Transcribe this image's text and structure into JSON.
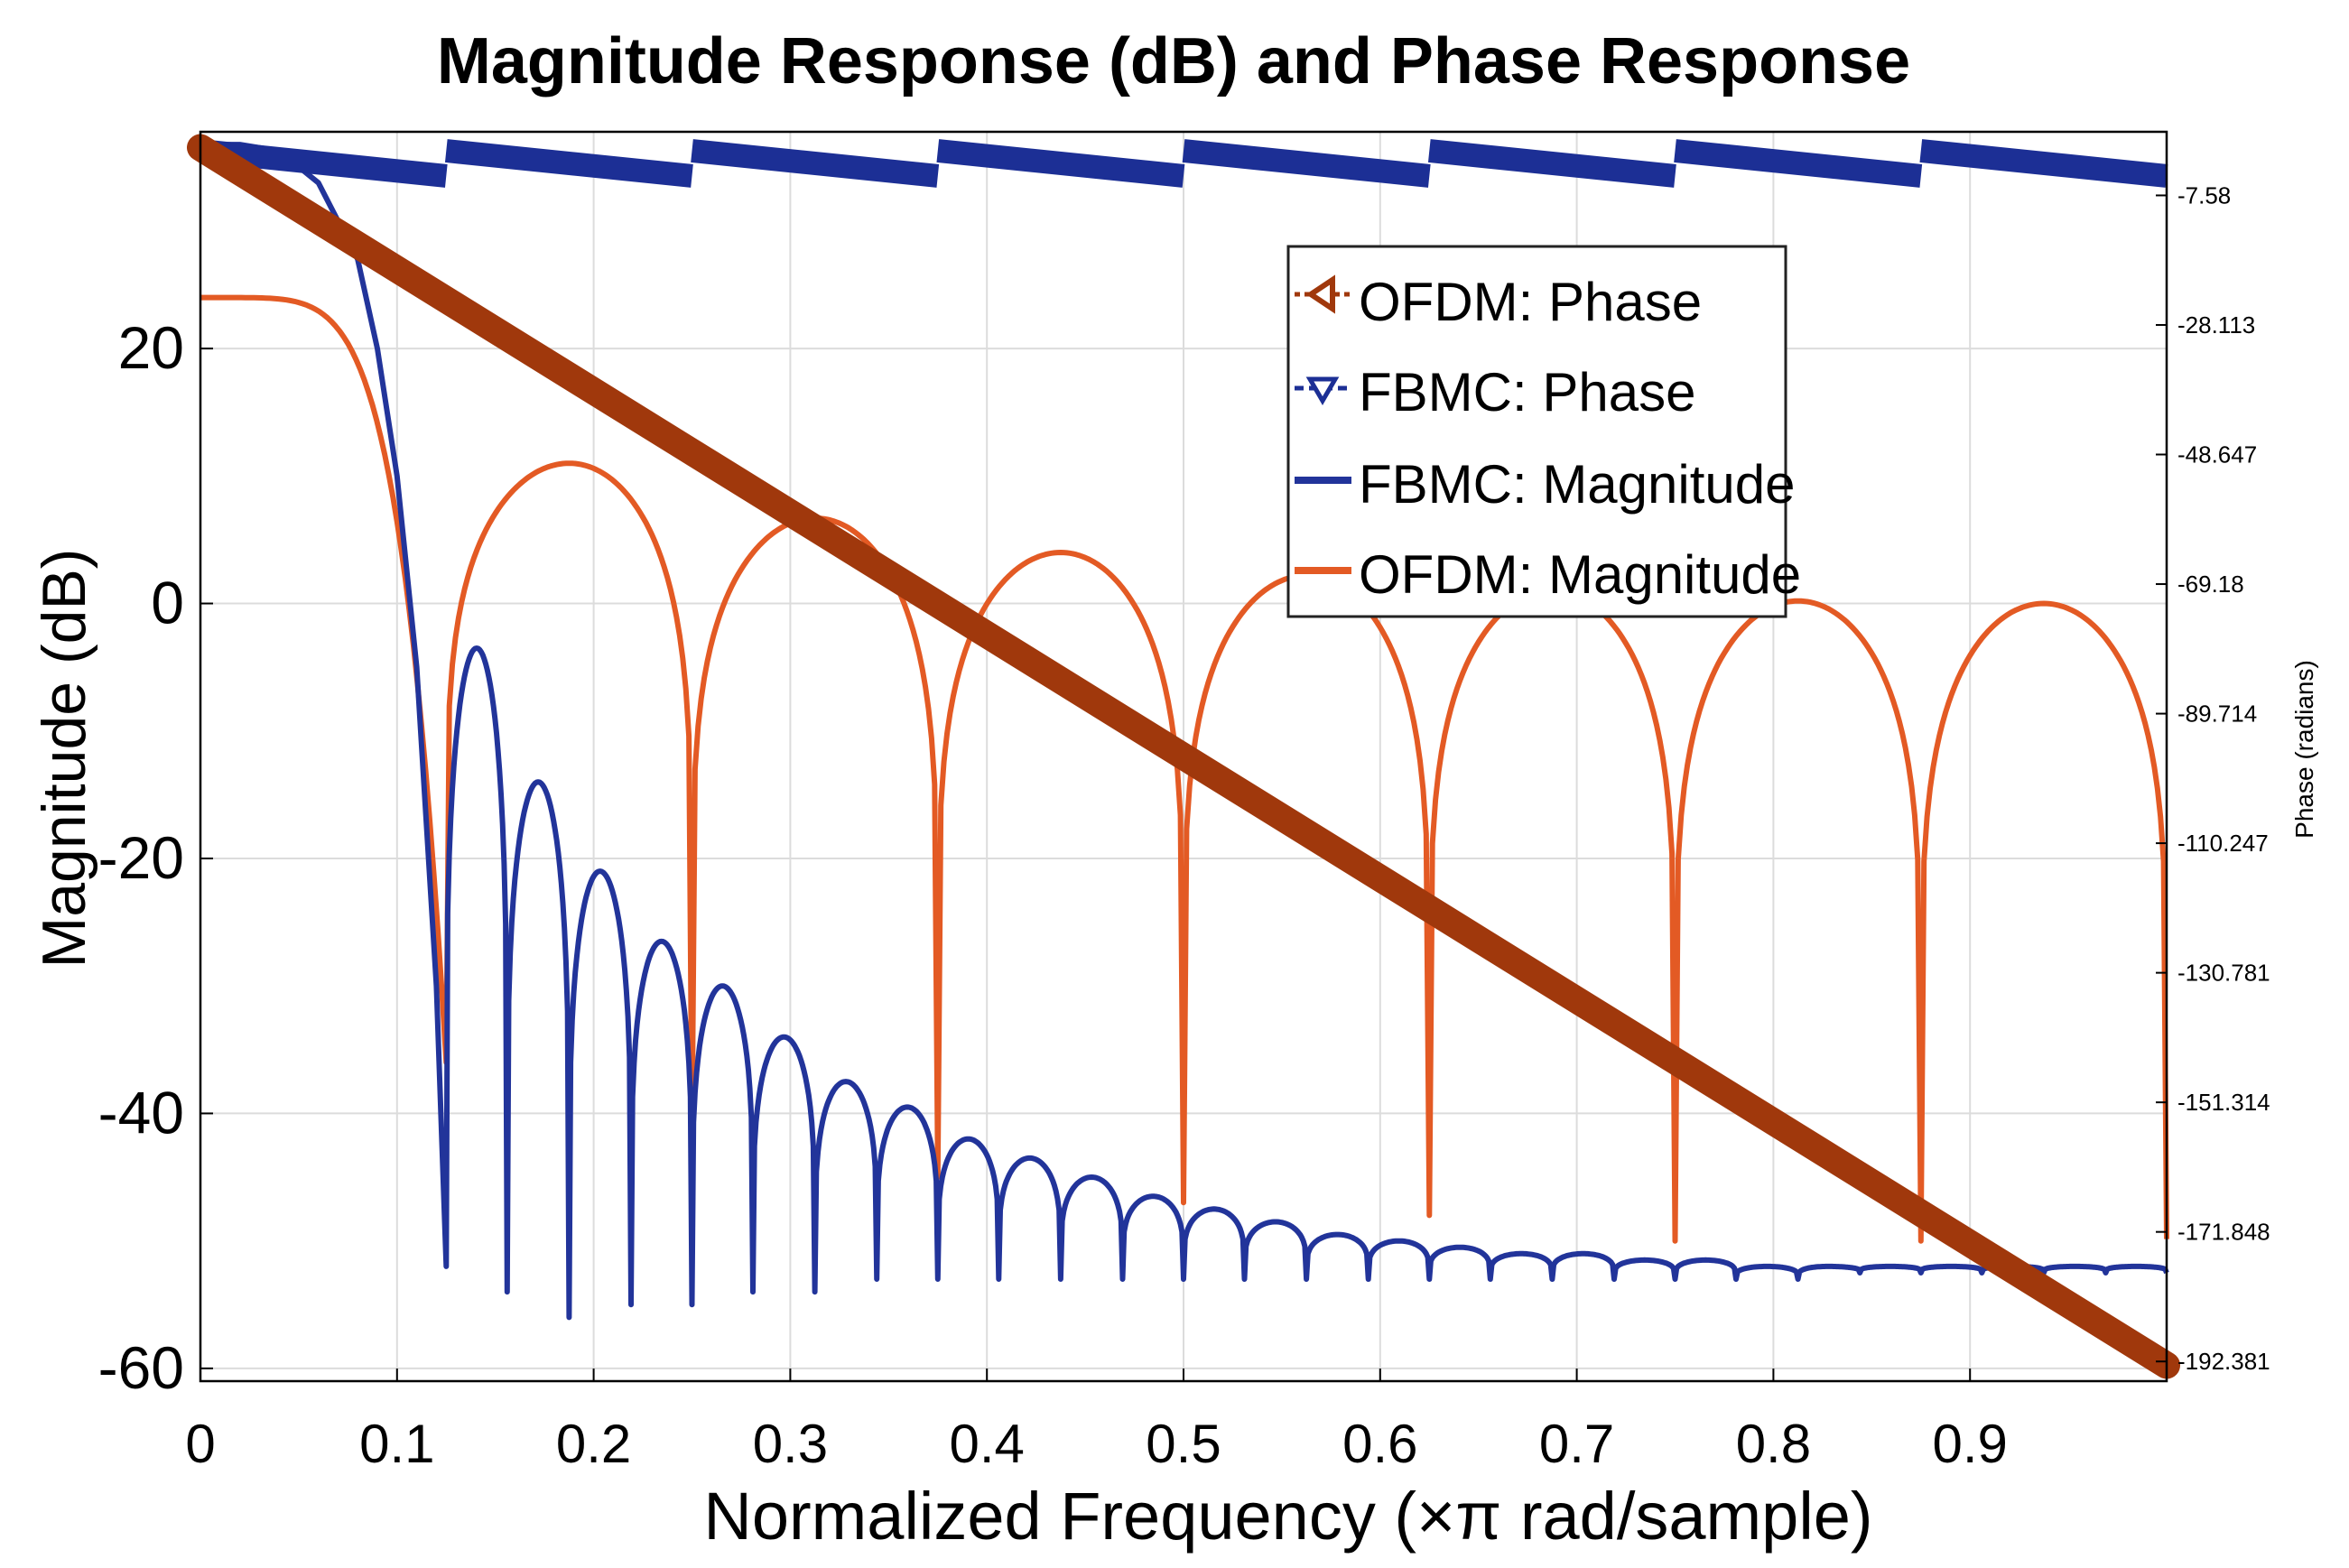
{
  "chart_data": {
    "type": "line",
    "title": "Magnitude Response (dB) and Phase Response",
    "xlabel": "Normalized Frequency (×π rad/sample)",
    "ylabel": "Magnitude (dB)",
    "y2label": "Phase (radians)",
    "xlim": [
      0,
      1
    ],
    "ylim": [
      -61,
      37
    ],
    "y2lim": [
      -195.5,
      2.5
    ],
    "grid": true,
    "x_ticks": [
      "0",
      "0.1",
      "0.2",
      "0.3",
      "0.4",
      "0.5",
      "0.6",
      "0.7",
      "0.8",
      "0.9"
    ],
    "y_ticks": [
      "-60",
      "-40",
      "-20",
      "0",
      "20"
    ],
    "y2_ticks": [
      "-192.381",
      "-171.848",
      "-151.314",
      "-130.781",
      "-110.247",
      "-89.714",
      "-69.18",
      "-48.647",
      "-28.113",
      "-7.58"
    ],
    "legend_position": "top-right",
    "series": [
      {
        "name": "OFDM: Phase",
        "axis": "right",
        "color": "#a0380c",
        "x": [
          0,
          1
        ],
        "y": [
          0,
          -193
        ]
      },
      {
        "name": "FBMC: Phase",
        "axis": "right",
        "color": "#1c2f95",
        "x": [
          0,
          1
        ],
        "sawtooth_period": 0.125,
        "y_start": -0.5,
        "y_end": -4.5
      },
      {
        "name": "FBMC: Magnitude",
        "axis": "left",
        "color": "#22349a",
        "mainlobe": {
          "x": [
            0,
            0.02,
            0.04,
            0.06,
            0.08,
            0.09,
            0.1,
            0.11,
            0.12,
            0.125
          ],
          "y": [
            36,
            36,
            35.5,
            33,
            27,
            20,
            10,
            -5,
            -30,
            -52
          ]
        },
        "nulls": [
          0.125,
          0.156,
          0.1875,
          0.219,
          0.25,
          0.281,
          0.3125,
          0.344,
          0.375,
          0.406,
          0.4375,
          0.469,
          0.5,
          0.531,
          0.5625,
          0.594,
          0.625,
          0.656,
          0.6875,
          0.719,
          0.75,
          0.781,
          0.8125,
          0.844,
          0.875,
          0.906,
          0.9375,
          0.969,
          1.0
        ],
        "null_depths": [
          -52,
          -54,
          -56,
          -55,
          -55,
          -54,
          -54,
          -53,
          -53,
          -53,
          -53,
          -53,
          -53,
          -53,
          -53,
          -53,
          -53,
          -53,
          -53,
          -53,
          -53,
          -53,
          -53,
          -52.5,
          -52.5,
          -52.5,
          -52.5,
          -52.5,
          -52.5
        ],
        "peaks": [
          -3.5,
          -14,
          -21,
          -26.5,
          -30,
          -34,
          -37.5,
          -39.5,
          -42,
          -43.5,
          -45,
          -46.5,
          -47.5,
          -48.5,
          -49.5,
          -50,
          -50.5,
          -51,
          -51,
          -51.5,
          -51.5,
          -52,
          -52,
          -52,
          -52,
          -52,
          -52,
          -52
        ]
      },
      {
        "name": "OFDM: Magnitude",
        "axis": "left",
        "color": "#e35a24",
        "x": [
          0,
          0.125,
          0.25,
          0.375,
          0.5,
          0.625,
          0.75,
          0.875,
          1.0
        ],
        "null_depths": [
          -36,
          -42,
          -45,
          -47,
          -48,
          -50,
          -50,
          -50
        ],
        "peaks": [
          24,
          11,
          6.7,
          4,
          2.2,
          1,
          0.2,
          0
        ]
      }
    ]
  },
  "legend": {
    "items": [
      "OFDM: Phase",
      "FBMC: Phase",
      "FBMC: Magnitude",
      "OFDM: Magnitude"
    ]
  }
}
